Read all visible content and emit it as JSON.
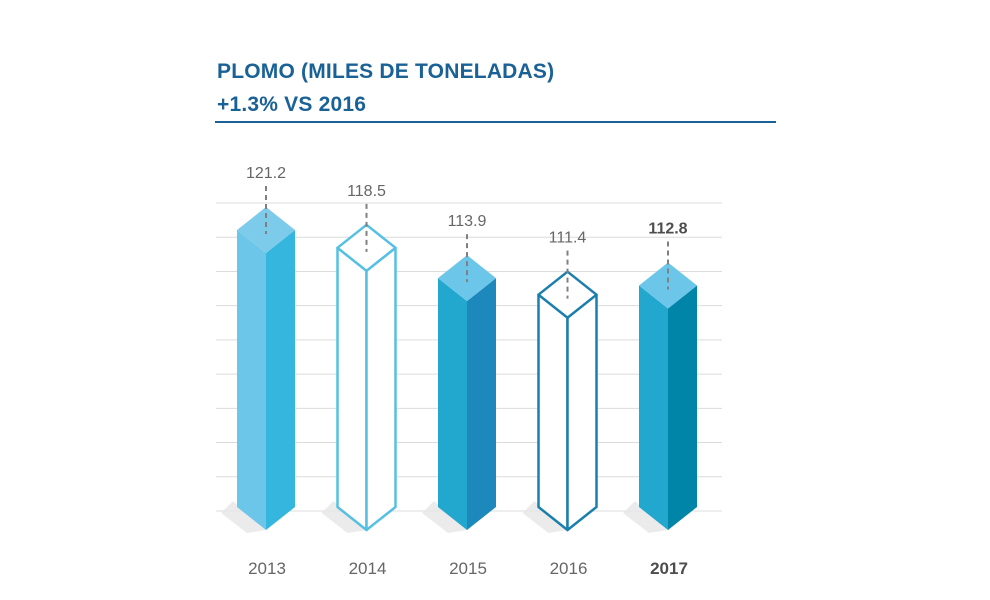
{
  "title": "PLOMO (MILES DE TONELADAS)",
  "subtitle": "+1.3% VS 2016",
  "colors": {
    "title": "#1a6196",
    "grid": "#dcdcdc",
    "leader": "#808080"
  },
  "chart_data": {
    "type": "bar",
    "categories": [
      "2013",
      "2014",
      "2015",
      "2016",
      "2017"
    ],
    "values": [
      121.2,
      118.5,
      113.9,
      111.4,
      112.8
    ],
    "data_labels": [
      "121.2",
      "118.5",
      "113.9",
      "111.4",
      "112.8"
    ],
    "highlight_index": 4,
    "title": "PLOMO (MILES DE TONELADAS)",
    "subtitle": "+1.3% VS 2016",
    "xlabel": "",
    "ylabel": "",
    "grid": true,
    "bar_styles": [
      {
        "style": "solid",
        "top": "#7dcbea",
        "left": "#6cc6e9",
        "right": "#34b6df"
      },
      {
        "style": "outline",
        "stroke": "#55c0e3"
      },
      {
        "style": "solid",
        "top": "#6cc6e9",
        "left": "#22a7cf",
        "right": "#1d88bb"
      },
      {
        "style": "outline",
        "stroke": "#1b7fae"
      },
      {
        "style": "solid",
        "top": "#6cc6e9",
        "left": "#22a7cf",
        "right": "#0085a8"
      }
    ]
  }
}
